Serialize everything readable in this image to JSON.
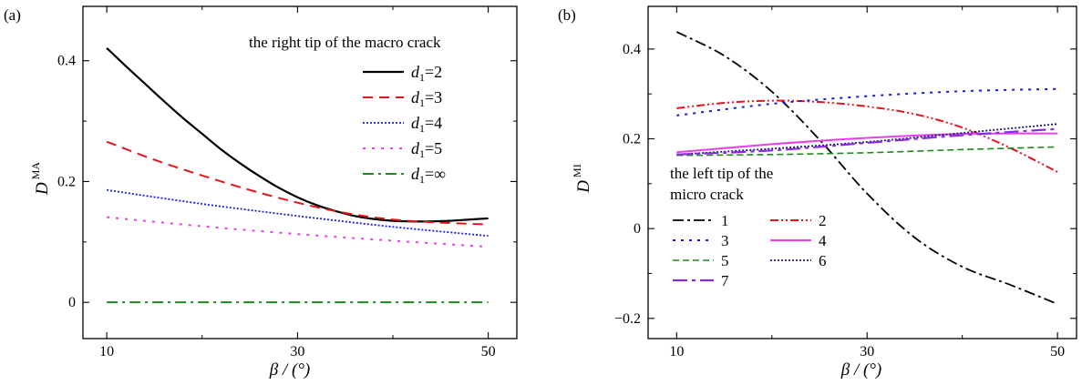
{
  "chart_data": [
    {
      "type": "line",
      "panel_label": "(a)",
      "title": "",
      "xlabel": "β / (°)",
      "ylabel": "D",
      "ylabel_superscript": "MA",
      "xlim": [
        7.5,
        53
      ],
      "ylim": [
        -0.06,
        0.49
      ],
      "xticks": [
        10,
        30,
        50
      ],
      "xtick_labels": [
        "10",
        "30",
        "50"
      ],
      "yticks": [
        0,
        0.2,
        0.4
      ],
      "ytick_labels": [
        "0",
        "0.2",
        "0.4"
      ],
      "grid": false,
      "legend_placement": "top-right",
      "legend_title": "the right tip of the macro crack",
      "series": [
        {
          "name": "d1=2",
          "label_var": "d",
          "label_sub": "1",
          "label_val": "=2",
          "color": "#000000",
          "dash": "",
          "width": 2.2,
          "x": [
            10,
            12,
            14,
            16,
            18,
            20,
            22,
            24,
            26,
            28,
            30,
            32,
            34,
            36,
            38,
            40,
            42,
            44,
            46,
            48,
            50
          ],
          "y": [
            0.421,
            0.391,
            0.362,
            0.333,
            0.305,
            0.279,
            0.253,
            0.23,
            0.209,
            0.19,
            0.174,
            0.161,
            0.151,
            0.143,
            0.138,
            0.135,
            0.134,
            0.134,
            0.135,
            0.137,
            0.139
          ]
        },
        {
          "name": "d1=3",
          "label_var": "d",
          "label_sub": "1",
          "label_val": "=3",
          "color": "#e8141b",
          "dash": "11,7",
          "width": 2,
          "x": [
            10,
            15,
            20,
            25,
            30,
            35,
            40,
            45,
            50
          ],
          "y": [
            0.266,
            0.236,
            0.21,
            0.186,
            0.165,
            0.148,
            0.137,
            0.132,
            0.129
          ]
        },
        {
          "name": "d1=4",
          "label_var": "d",
          "label_sub": "1",
          "label_val": "=4",
          "color": "#1a1adb",
          "dash": "2,2",
          "width": 1.8,
          "x": [
            10,
            20,
            30,
            40,
            50
          ],
          "y": [
            0.186,
            0.163,
            0.143,
            0.125,
            0.11
          ]
        },
        {
          "name": "d1=5",
          "label_var": "d",
          "label_sub": "1",
          "label_val": "=5",
          "color": "#e83ee8",
          "dash": "3,7",
          "width": 2,
          "x": [
            10,
            20,
            30,
            40,
            50
          ],
          "y": [
            0.141,
            0.126,
            0.113,
            0.102,
            0.092
          ]
        },
        {
          "name": "d1=∞",
          "label_var": "d",
          "label_sub": "1",
          "label_val": "=∞",
          "color": "#1c8a1c",
          "dash": "12,5,3,5",
          "width": 2,
          "x": [
            10,
            50
          ],
          "y": [
            0.0,
            0.0
          ]
        }
      ]
    },
    {
      "type": "line",
      "panel_label": "(b)",
      "title": "",
      "xlabel": "β / (°)",
      "ylabel": "D",
      "ylabel_superscript": "MI",
      "xlim": [
        7,
        52
      ],
      "ylim": [
        -0.245,
        0.495
      ],
      "xticks": [
        10,
        30,
        50
      ],
      "xtick_labels": [
        "10",
        "30",
        "50"
      ],
      "yticks": [
        -0.2,
        0,
        0.2,
        0.4
      ],
      "ytick_labels": [
        "−0.2",
        "0",
        "0.2",
        "0.4"
      ],
      "grid": false,
      "legend_placement": "lower-left",
      "legend_title": [
        "the left tip of the",
        "micro crack"
      ],
      "series": [
        {
          "name": "1",
          "color": "#000000",
          "dash": "12,4,3,4",
          "width": 1.8,
          "x": [
            10,
            15,
            20,
            25,
            30,
            35,
            40,
            45,
            50
          ],
          "y": [
            0.438,
            0.385,
            0.305,
            0.198,
            0.078,
            -0.02,
            -0.085,
            -0.125,
            -0.168
          ]
        },
        {
          "name": "2",
          "color": "#e8141b",
          "dash": "9,3,2,3,2,3",
          "width": 2,
          "x": [
            10,
            15,
            20,
            25,
            30,
            35,
            40,
            45,
            50
          ],
          "y": [
            0.268,
            0.28,
            0.285,
            0.282,
            0.272,
            0.255,
            0.225,
            0.18,
            0.126
          ]
        },
        {
          "name": "3",
          "color": "#1a1adb",
          "dash": "3,6",
          "width": 2,
          "x": [
            10,
            20,
            30,
            40,
            50
          ],
          "y": [
            0.252,
            0.278,
            0.295,
            0.306,
            0.311
          ]
        },
        {
          "name": "4",
          "color": "#e83ee8",
          "dash": "",
          "width": 2,
          "x": [
            10,
            20,
            30,
            40,
            50
          ],
          "y": [
            0.17,
            0.188,
            0.202,
            0.211,
            0.212
          ]
        },
        {
          "name": "5",
          "color": "#1c8a1c",
          "dash": "7,4",
          "width": 1.6,
          "x": [
            10,
            20,
            30,
            40,
            50
          ],
          "y": [
            0.163,
            0.165,
            0.169,
            0.176,
            0.182
          ]
        },
        {
          "name": "6",
          "color": "#151570",
          "dash": "2,2",
          "width": 1.8,
          "x": [
            10,
            20,
            30,
            40,
            50
          ],
          "y": [
            0.165,
            0.178,
            0.193,
            0.213,
            0.233
          ]
        },
        {
          "name": "7",
          "color": "#8a2be2",
          "dash": "16,5,4,5",
          "width": 2.2,
          "x": [
            10,
            20,
            30,
            40,
            50
          ],
          "y": [
            0.165,
            0.174,
            0.191,
            0.208,
            0.222
          ]
        }
      ]
    }
  ]
}
